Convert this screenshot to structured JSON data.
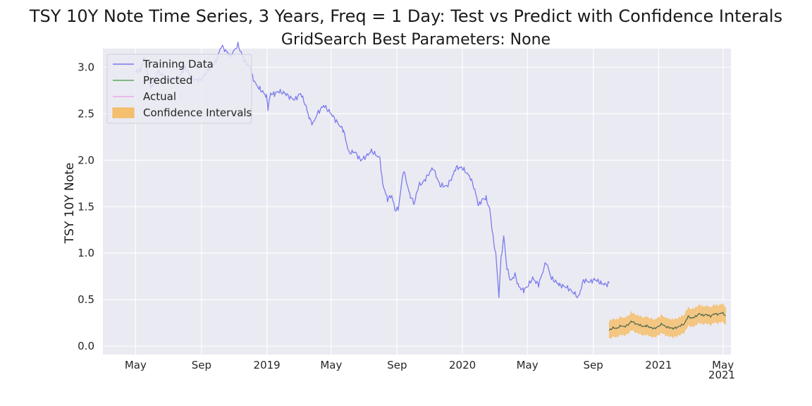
{
  "chart_data": {
    "type": "line",
    "title": "TSY 10Y Note Time Series, 3 Years, Freq = 1 Day: Test vs Predict with Confidence Interals",
    "subtitle": "GridSearch Best Parameters: None",
    "xlabel": "",
    "ylabel": "TSY 10Y Note",
    "ylim": [
      -0.09,
      3.2
    ],
    "yticks": [
      0.0,
      0.5,
      1.0,
      1.5,
      2.0,
      2.5,
      3.0
    ],
    "ytick_labels": [
      "0.0",
      "0.5",
      "1.0",
      "1.5",
      "2.0",
      "2.5",
      "3.0"
    ],
    "xlim": [
      "2018-03-01",
      "2021-05-16"
    ],
    "xticks": [
      "2018-05-01",
      "2018-09-01",
      "2019-01-01",
      "2019-05-01",
      "2019-09-01",
      "2020-01-01",
      "2020-05-01",
      "2020-09-01",
      "2021-01-01",
      "2021-05-01"
    ],
    "xtick_labels": [
      "May",
      "Sep",
      "2019",
      "May",
      "Sep",
      "2020",
      "May",
      "Sep",
      "2021",
      "May"
    ],
    "x_offset_label": "2021",
    "grid": true,
    "background": "#eaeaf2",
    "legend_position": "top-left",
    "legend": [
      {
        "label": "Training Data",
        "color": "#7b7bef",
        "kind": "line"
      },
      {
        "label": "Predicted",
        "color": "#5aa85a",
        "kind": "line"
      },
      {
        "label": "Actual",
        "color": "#f0a8e8",
        "kind": "line"
      },
      {
        "label": "Confidence Intervals",
        "color": "#f5c06e",
        "kind": "patch"
      }
    ],
    "series": [
      {
        "name": "Training Data",
        "color": "#7b7bef",
        "points": [
          [
            "2018-05-01",
            2.95
          ],
          [
            "2018-05-10",
            2.97
          ],
          [
            "2018-05-17",
            3.11
          ],
          [
            "2018-05-29",
            2.77
          ],
          [
            "2018-06-12",
            2.96
          ],
          [
            "2018-06-29",
            2.86
          ],
          [
            "2018-07-18",
            2.87
          ],
          [
            "2018-08-01",
            3.0
          ],
          [
            "2018-08-16",
            2.87
          ],
          [
            "2018-08-30",
            2.86
          ],
          [
            "2018-09-17",
            3.0
          ],
          [
            "2018-09-28",
            3.06
          ],
          [
            "2018-10-08",
            3.23
          ],
          [
            "2018-10-25",
            3.12
          ],
          [
            "2018-11-08",
            3.24
          ],
          [
            "2018-11-21",
            3.06
          ],
          [
            "2018-11-30",
            3.01
          ],
          [
            "2018-12-05",
            2.9
          ],
          [
            "2018-12-11",
            2.82
          ],
          [
            "2018-12-20",
            2.76
          ],
          [
            "2018-12-31",
            2.69
          ],
          [
            "2019-01-03",
            2.56
          ],
          [
            "2019-01-08",
            2.72
          ],
          [
            "2019-01-15",
            2.71
          ],
          [
            "2019-01-22",
            2.74
          ],
          [
            "2019-02-04",
            2.72
          ],
          [
            "2019-02-12",
            2.68
          ],
          [
            "2019-02-22",
            2.65
          ],
          [
            "2019-03-05",
            2.72
          ],
          [
            "2019-03-13",
            2.61
          ],
          [
            "2019-03-22",
            2.44
          ],
          [
            "2019-03-28",
            2.39
          ],
          [
            "2019-04-05",
            2.5
          ],
          [
            "2019-04-17",
            2.59
          ],
          [
            "2019-05-01",
            2.5
          ],
          [
            "2019-05-13",
            2.4
          ],
          [
            "2019-05-24",
            2.32
          ],
          [
            "2019-06-03",
            2.08
          ],
          [
            "2019-06-14",
            2.09
          ],
          [
            "2019-06-25",
            2.0
          ],
          [
            "2019-07-05",
            2.04
          ],
          [
            "2019-07-15",
            2.1
          ],
          [
            "2019-07-31",
            2.02
          ],
          [
            "2019-08-05",
            1.75
          ],
          [
            "2019-08-14",
            1.58
          ],
          [
            "2019-08-22",
            1.62
          ],
          [
            "2019-08-28",
            1.47
          ],
          [
            "2019-09-03",
            1.47
          ],
          [
            "2019-09-13",
            1.9
          ],
          [
            "2019-09-24",
            1.64
          ],
          [
            "2019-10-03",
            1.53
          ],
          [
            "2019-10-11",
            1.73
          ],
          [
            "2019-10-18",
            1.75
          ],
          [
            "2019-11-07",
            1.92
          ],
          [
            "2019-11-20",
            1.73
          ],
          [
            "2019-12-03",
            1.72
          ],
          [
            "2019-12-13",
            1.82
          ],
          [
            "2019-12-20",
            1.92
          ],
          [
            "2019-12-31",
            1.92
          ],
          [
            "2020-01-08",
            1.87
          ],
          [
            "2020-01-16",
            1.81
          ],
          [
            "2020-01-24",
            1.68
          ],
          [
            "2020-01-31",
            1.51
          ],
          [
            "2020-02-07",
            1.58
          ],
          [
            "2020-02-14",
            1.59
          ],
          [
            "2020-02-21",
            1.47
          ],
          [
            "2020-02-28",
            1.13
          ],
          [
            "2020-03-03",
            1.0
          ],
          [
            "2020-03-09",
            0.54
          ],
          [
            "2020-03-13",
            0.94
          ],
          [
            "2020-03-18",
            1.18
          ],
          [
            "2020-03-24",
            0.84
          ],
          [
            "2020-03-31",
            0.7
          ],
          [
            "2020-04-08",
            0.77
          ],
          [
            "2020-04-15",
            0.64
          ],
          [
            "2020-04-24",
            0.6
          ],
          [
            "2020-05-01",
            0.64
          ],
          [
            "2020-05-11",
            0.73
          ],
          [
            "2020-05-22",
            0.66
          ],
          [
            "2020-06-05",
            0.91
          ],
          [
            "2020-06-15",
            0.73
          ],
          [
            "2020-06-30",
            0.66
          ],
          [
            "2020-07-15",
            0.63
          ],
          [
            "2020-07-31",
            0.55
          ],
          [
            "2020-08-04",
            0.52
          ],
          [
            "2020-08-14",
            0.71
          ],
          [
            "2020-08-26",
            0.69
          ],
          [
            "2020-09-04",
            0.72
          ],
          [
            "2020-09-15",
            0.68
          ],
          [
            "2020-09-25",
            0.66
          ],
          [
            "2020-10-01",
            0.68
          ]
        ]
      },
      {
        "name": "Predicted",
        "color": "#5aa85a",
        "points": [
          [
            "2020-10-01",
            0.17
          ],
          [
            "2020-10-08",
            0.2
          ],
          [
            "2020-10-15",
            0.19
          ],
          [
            "2020-10-22",
            0.22
          ],
          [
            "2020-10-29",
            0.21
          ],
          [
            "2020-11-05",
            0.23
          ],
          [
            "2020-11-12",
            0.27
          ],
          [
            "2020-11-19",
            0.24
          ],
          [
            "2020-11-26",
            0.23
          ],
          [
            "2020-12-03",
            0.21
          ],
          [
            "2020-12-10",
            0.22
          ],
          [
            "2020-12-17",
            0.2
          ],
          [
            "2020-12-24",
            0.19
          ],
          [
            "2020-12-31",
            0.21
          ],
          [
            "2021-01-07",
            0.24
          ],
          [
            "2021-01-14",
            0.21
          ],
          [
            "2021-01-21",
            0.2
          ],
          [
            "2021-01-28",
            0.19
          ],
          [
            "2021-02-04",
            0.2
          ],
          [
            "2021-02-11",
            0.22
          ],
          [
            "2021-02-18",
            0.24
          ],
          [
            "2021-02-25",
            0.32
          ],
          [
            "2021-03-04",
            0.3
          ],
          [
            "2021-03-11",
            0.32
          ],
          [
            "2021-03-18",
            0.35
          ],
          [
            "2021-03-25",
            0.33
          ],
          [
            "2021-04-01",
            0.34
          ],
          [
            "2021-04-08",
            0.32
          ],
          [
            "2021-04-15",
            0.35
          ],
          [
            "2021-04-22",
            0.34
          ],
          [
            "2021-04-29",
            0.36
          ],
          [
            "2021-05-06",
            0.33
          ]
        ]
      },
      {
        "name": "Actual",
        "color": "#f0a8e8",
        "points": [
          [
            "2020-10-01",
            0.17
          ],
          [
            "2020-10-08",
            0.2
          ],
          [
            "2020-10-15",
            0.19
          ],
          [
            "2020-10-22",
            0.22
          ],
          [
            "2020-10-29",
            0.21
          ],
          [
            "2020-11-05",
            0.23
          ],
          [
            "2020-11-12",
            0.27
          ],
          [
            "2020-11-19",
            0.24
          ],
          [
            "2020-11-26",
            0.23
          ],
          [
            "2020-12-03",
            0.21
          ],
          [
            "2020-12-10",
            0.22
          ],
          [
            "2020-12-17",
            0.2
          ],
          [
            "2020-12-24",
            0.19
          ],
          [
            "2020-12-31",
            0.21
          ],
          [
            "2021-01-07",
            0.24
          ],
          [
            "2021-01-14",
            0.21
          ],
          [
            "2021-01-21",
            0.2
          ],
          [
            "2021-01-28",
            0.19
          ],
          [
            "2021-02-04",
            0.2
          ],
          [
            "2021-02-11",
            0.22
          ],
          [
            "2021-02-18",
            0.24
          ],
          [
            "2021-02-25",
            0.32
          ],
          [
            "2021-03-04",
            0.3
          ],
          [
            "2021-03-11",
            0.32
          ],
          [
            "2021-03-18",
            0.35
          ],
          [
            "2021-03-25",
            0.33
          ],
          [
            "2021-04-01",
            0.34
          ],
          [
            "2021-04-08",
            0.32
          ],
          [
            "2021-04-15",
            0.35
          ],
          [
            "2021-04-22",
            0.34
          ],
          [
            "2021-04-29",
            0.36
          ],
          [
            "2021-05-06",
            0.33
          ]
        ]
      }
    ],
    "confidence_band": {
      "name": "Confidence Intervals",
      "color": "#f5c06e",
      "half_width": 0.09
    }
  }
}
